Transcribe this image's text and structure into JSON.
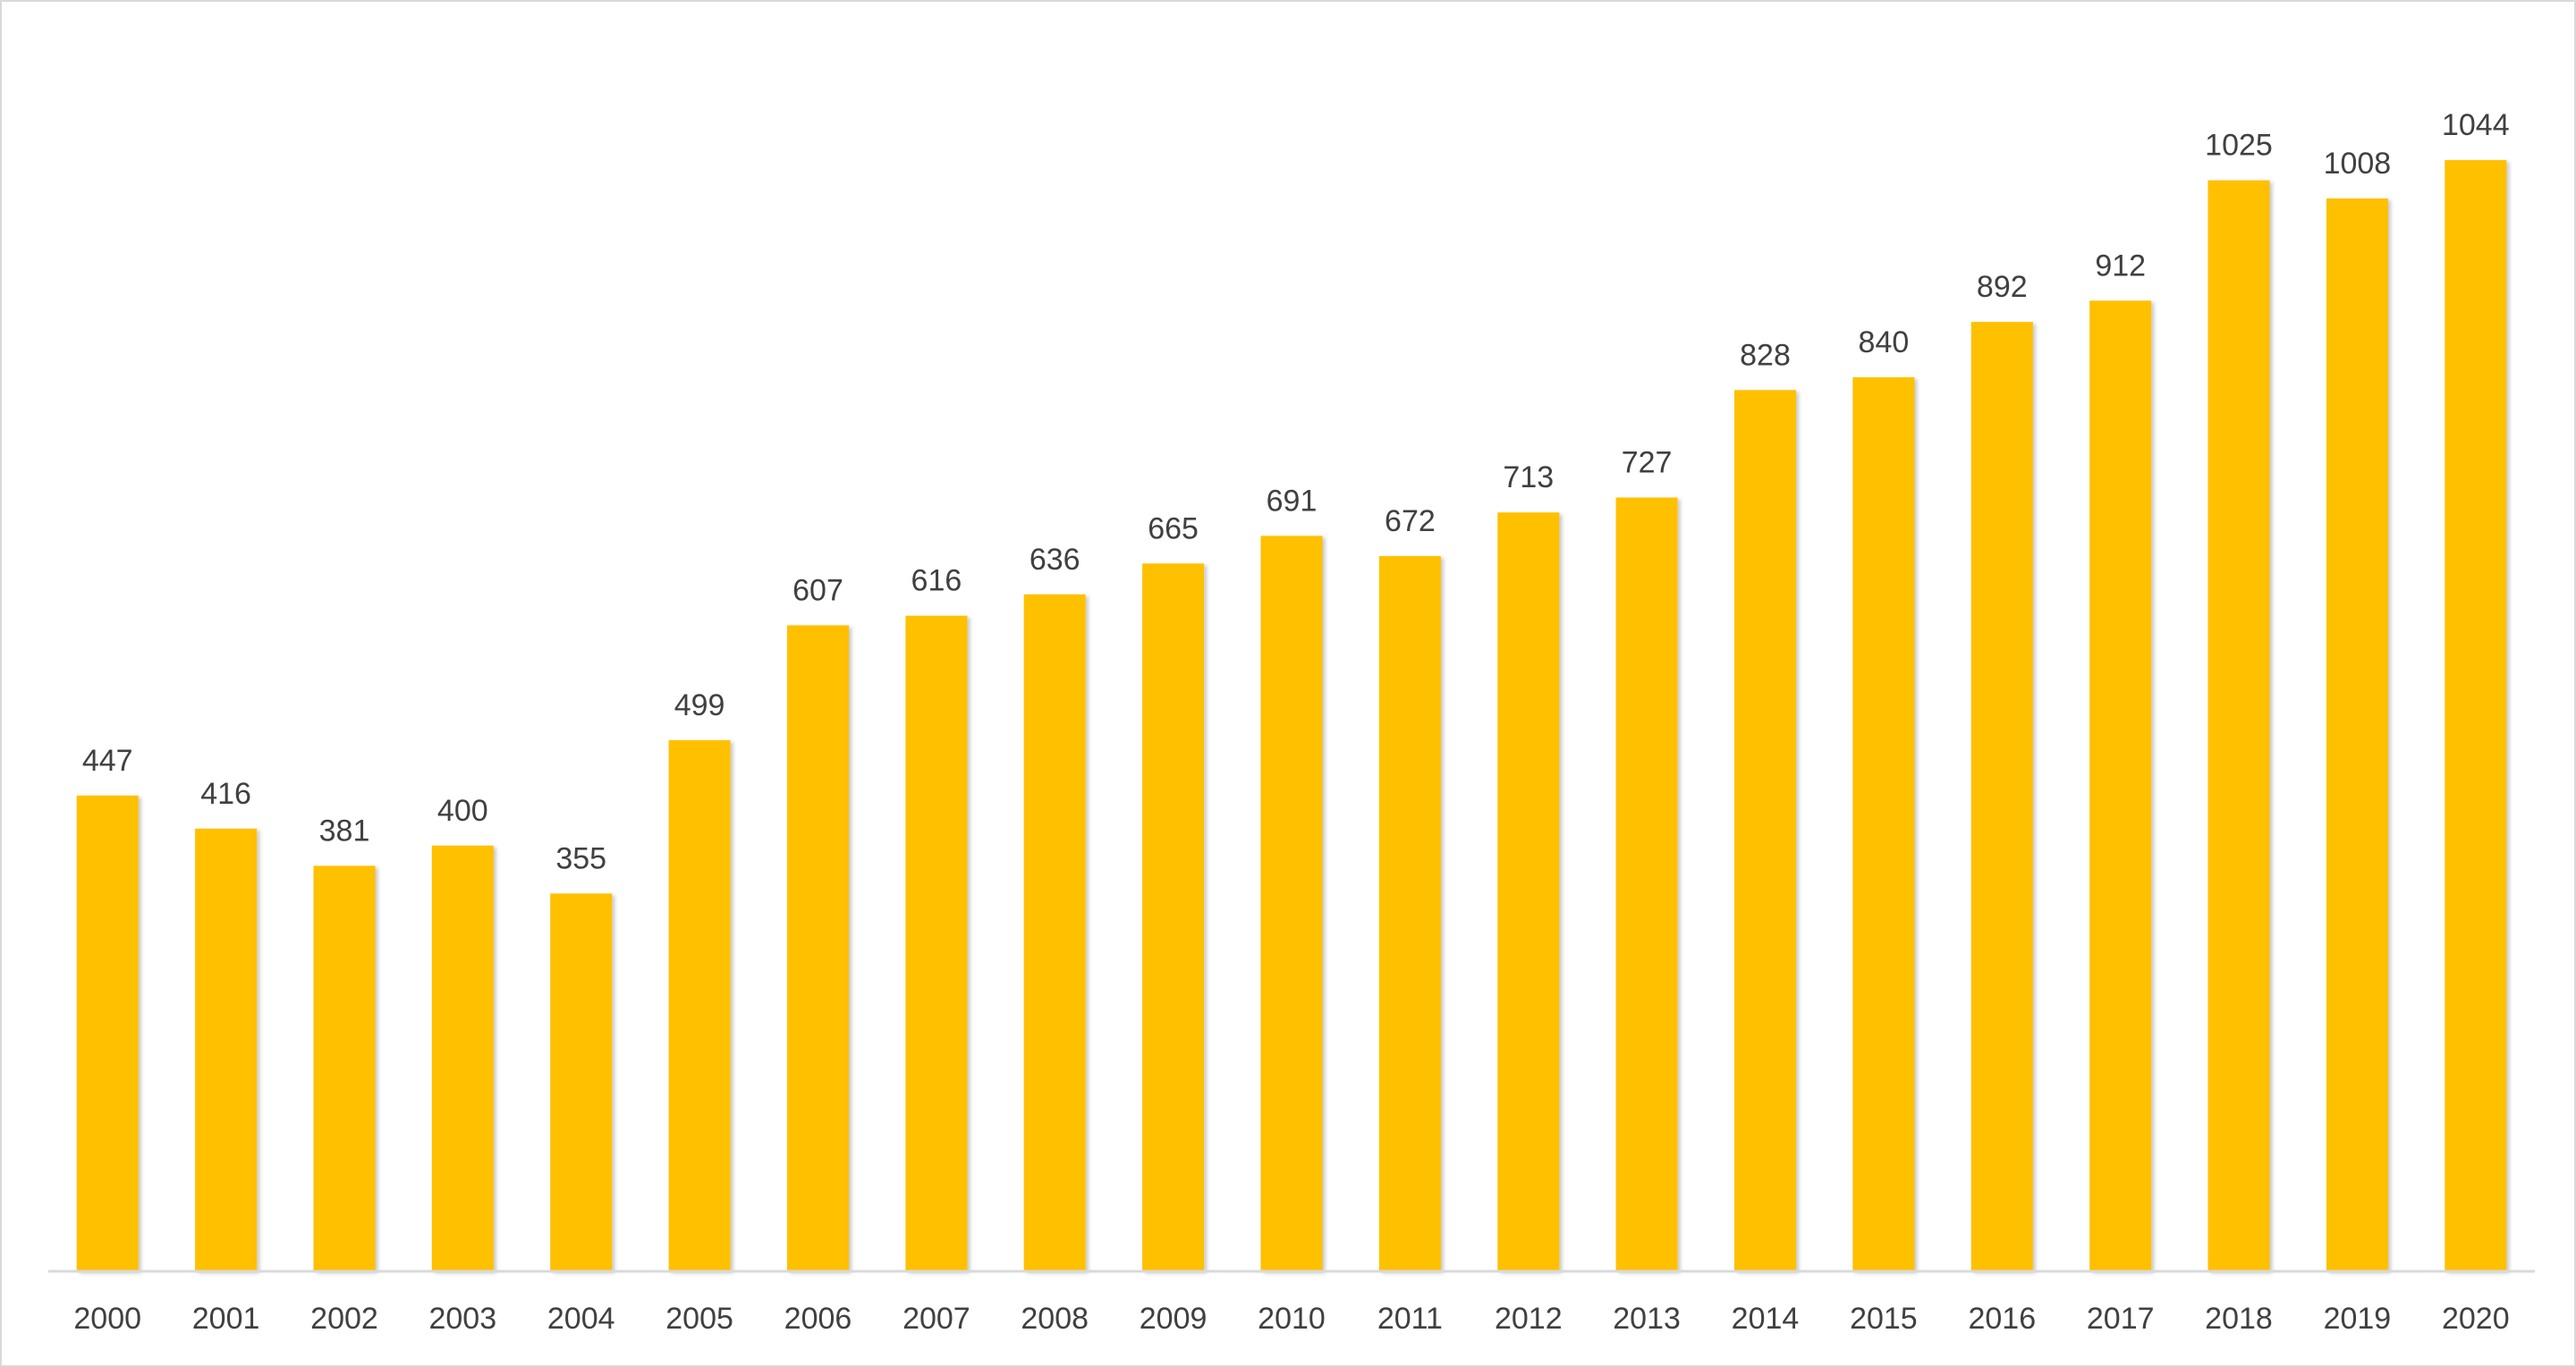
{
  "chart_data": {
    "type": "bar",
    "categories": [
      "2000",
      "2001",
      "2002",
      "2003",
      "2004",
      "2005",
      "2006",
      "2007",
      "2008",
      "2009",
      "2010",
      "2011",
      "2012",
      "2013",
      "2014",
      "2015",
      "2016",
      "2017",
      "2018",
      "2019",
      "2020"
    ],
    "values": [
      447,
      416,
      381,
      400,
      355,
      499,
      607,
      616,
      636,
      665,
      691,
      672,
      713,
      727,
      828,
      840,
      892,
      912,
      1025,
      1008,
      1044
    ],
    "data_labels": [
      "447",
      "416",
      "381",
      "400",
      "355",
      "499",
      "607",
      "616",
      "636",
      "665",
      "691",
      "672",
      "713",
      "727",
      "828",
      "840",
      "892",
      "912",
      "1025",
      "1008",
      "1044"
    ],
    "title": "",
    "xlabel": "",
    "ylabel": "",
    "ylim": [
      0,
      1250
    ],
    "grid": false,
    "legend": "none",
    "bar_color": "#FFC000",
    "axis_color": "#d9d9d9",
    "label_color": "#404040"
  }
}
